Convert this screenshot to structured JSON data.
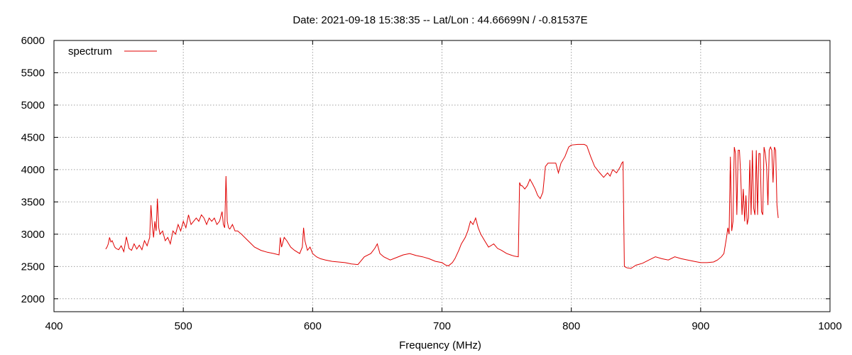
{
  "chart_data": {
    "type": "line",
    "title": "Date: 2021-09-18 15:38:35  --  Lat/Lon : 44.66699N / -0.81537E",
    "xlabel": "Frequency (MHz)",
    "ylabel": "",
    "xlim": [
      400,
      1000
    ],
    "ylim": [
      1800,
      6000
    ],
    "xticks": [
      400,
      500,
      600,
      700,
      800,
      900,
      1000
    ],
    "yticks": [
      2000,
      2500,
      3000,
      3500,
      4000,
      4500,
      5000,
      5500,
      6000
    ],
    "grid": true,
    "legend_position": "top-left",
    "colors": {
      "series": "#e00000",
      "grid": "#a0a0a0",
      "axis": "#000000"
    },
    "series": [
      {
        "name": "spectrum",
        "x": [
          440,
          441,
          442,
          443,
          444,
          445,
          446,
          447,
          448,
          450,
          452,
          454,
          456,
          458,
          460,
          462,
          464,
          466,
          468,
          470,
          472,
          474,
          475,
          476,
          477,
          478,
          479,
          480,
          481,
          482,
          484,
          486,
          488,
          490,
          492,
          494,
          496,
          498,
          500,
          502,
          504,
          506,
          508,
          510,
          512,
          514,
          516,
          518,
          520,
          522,
          524,
          526,
          528,
          530,
          531,
          532,
          533,
          534,
          535,
          536,
          538,
          540,
          542,
          545,
          550,
          555,
          560,
          565,
          570,
          574,
          575,
          576,
          578,
          580,
          583,
          586,
          590,
          592,
          593,
          594,
          596,
          598,
          600,
          603,
          606,
          610,
          615,
          620,
          625,
          630,
          635,
          640,
          645,
          648,
          650,
          652,
          655,
          658,
          660,
          665,
          670,
          675,
          680,
          685,
          690,
          695,
          700,
          703,
          705,
          708,
          710,
          713,
          715,
          718,
          720,
          722,
          724,
          726,
          728,
          730,
          733,
          736,
          740,
          743,
          746,
          750,
          753,
          756,
          759,
          760,
          761,
          762,
          764,
          766,
          768,
          770,
          772,
          774,
          776,
          778,
          780,
          782,
          785,
          788,
          790,
          792,
          795,
          798,
          800,
          805,
          810,
          812,
          815,
          818,
          820,
          822,
          825,
          828,
          830,
          832,
          835,
          838,
          839,
          840,
          841,
          843,
          846,
          850,
          855,
          860,
          865,
          870,
          875,
          880,
          885,
          890,
          895,
          900,
          905,
          910,
          913,
          916,
          918,
          920,
          921,
          922,
          923,
          924,
          925,
          926,
          927,
          928,
          929,
          930,
          931,
          932,
          933,
          934,
          935,
          936,
          937,
          938,
          939,
          940,
          941,
          942,
          943,
          944,
          945,
          946,
          947,
          948,
          949,
          950,
          951,
          952,
          953,
          954,
          955,
          956,
          957,
          958,
          959,
          960
        ],
        "values": [
          2770,
          2800,
          2850,
          2950,
          2880,
          2900,
          2850,
          2800,
          2780,
          2760,
          2820,
          2730,
          2960,
          2780,
          2750,
          2850,
          2770,
          2830,
          2760,
          2900,
          2820,
          2950,
          3450,
          3150,
          2950,
          3200,
          3050,
          3550,
          3100,
          3000,
          3050,
          2900,
          2950,
          2850,
          3050,
          3000,
          3150,
          3050,
          3200,
          3100,
          3300,
          3150,
          3200,
          3250,
          3200,
          3300,
          3250,
          3150,
          3250,
          3200,
          3250,
          3150,
          3200,
          3350,
          3150,
          3100,
          3900,
          3200,
          3100,
          3080,
          3150,
          3050,
          3050,
          3000,
          2900,
          2800,
          2750,
          2720,
          2700,
          2680,
          2950,
          2800,
          2950,
          2900,
          2800,
          2750,
          2700,
          2800,
          3100,
          2900,
          2750,
          2800,
          2700,
          2650,
          2620,
          2600,
          2580,
          2570,
          2560,
          2540,
          2530,
          2650,
          2700,
          2780,
          2850,
          2700,
          2650,
          2620,
          2600,
          2640,
          2680,
          2700,
          2670,
          2650,
          2620,
          2580,
          2560,
          2520,
          2510,
          2560,
          2620,
          2750,
          2850,
          2950,
          3050,
          3200,
          3150,
          3250,
          3100,
          3000,
          2900,
          2800,
          2850,
          2780,
          2750,
          2700,
          2680,
          2660,
          2650,
          3800,
          3750,
          3750,
          3700,
          3750,
          3850,
          3780,
          3700,
          3600,
          3550,
          3650,
          4050,
          4100,
          4100,
          4100,
          3950,
          4100,
          4200,
          4350,
          4380,
          4390,
          4390,
          4370,
          4200,
          4050,
          4000,
          3950,
          3880,
          3950,
          3900,
          4000,
          3950,
          4050,
          4100,
          4120,
          2500,
          2480,
          2470,
          2520,
          2550,
          2600,
          2650,
          2620,
          2600,
          2650,
          2620,
          2600,
          2580,
          2560,
          2560,
          2570,
          2600,
          2650,
          2700,
          2950,
          3100,
          3000,
          4200,
          3050,
          3200,
          4350,
          4250,
          3300,
          4300,
          4300,
          3900,
          3300,
          3700,
          3200,
          3600,
          3150,
          3250,
          4150,
          3300,
          4300,
          3400,
          3300,
          4300,
          3300,
          4250,
          4250,
          3350,
          3300,
          4350,
          4250,
          4050,
          3450,
          4300,
          4350,
          4300,
          3800,
          4350,
          4300,
          3450,
          3250
        ]
      }
    ]
  }
}
